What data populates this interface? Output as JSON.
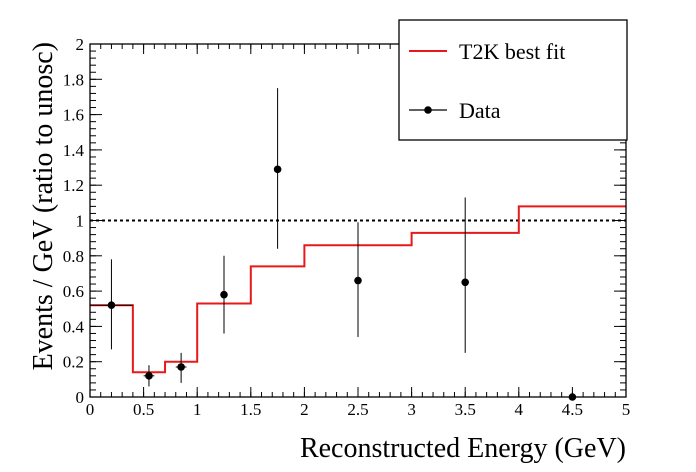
{
  "chart_data": {
    "type": "line",
    "title": "",
    "xlabel": "Reconstructed Energy (GeV)",
    "ylabel": "Events / GeV (ratio to unosc)",
    "xlim": [
      0,
      5
    ],
    "ylim": [
      0,
      2
    ],
    "x_ticks": [
      "0",
      "0.5",
      "1",
      "1.5",
      "2",
      "2.5",
      "3",
      "3.5",
      "4",
      "4.5",
      "5"
    ],
    "y_ticks": [
      "0",
      "0.2",
      "0.4",
      "0.6",
      "0.8",
      "1",
      "1.2",
      "1.4",
      "1.6",
      "1.8",
      "2"
    ],
    "reference_line": {
      "y": 1,
      "style": "dotted"
    },
    "legend": {
      "position": "top-right",
      "entries": [
        "T2K best fit",
        "Data"
      ]
    },
    "series": [
      {
        "name": "T2K best fit",
        "kind": "step",
        "color": "#e8191a",
        "bins": [
          {
            "x0": 0.0,
            "x1": 0.4,
            "y": 0.52
          },
          {
            "x0": 0.4,
            "x1": 0.7,
            "y": 0.14
          },
          {
            "x0": 0.7,
            "x1": 1.0,
            "y": 0.2
          },
          {
            "x0": 1.0,
            "x1": 1.5,
            "y": 0.53
          },
          {
            "x0": 1.5,
            "x1": 2.0,
            "y": 0.74
          },
          {
            "x0": 2.0,
            "x1": 3.0,
            "y": 0.86
          },
          {
            "x0": 3.0,
            "x1": 4.0,
            "y": 0.93
          },
          {
            "x0": 4.0,
            "x1": 5.0,
            "y": 1.08
          }
        ]
      },
      {
        "name": "Data",
        "kind": "points",
        "color": "#000000",
        "points": [
          {
            "x": 0.2,
            "y": 0.52,
            "ylo": 0.27,
            "yhi": 0.78,
            "xlo": 0.0,
            "xhi": 0.4
          },
          {
            "x": 0.55,
            "y": 0.12,
            "ylo": 0.06,
            "yhi": 0.18,
            "xlo": 0.5,
            "xhi": 0.6
          },
          {
            "x": 0.85,
            "y": 0.17,
            "ylo": 0.08,
            "yhi": 0.25,
            "xlo": 0.8,
            "xhi": 0.9
          },
          {
            "x": 1.25,
            "y": 0.58,
            "ylo": 0.36,
            "yhi": 0.8,
            "xlo": 1.22,
            "xhi": 1.28
          },
          {
            "x": 1.75,
            "y": 1.29,
            "ylo": 0.84,
            "yhi": 1.75,
            "xlo": 1.72,
            "xhi": 1.78
          },
          {
            "x": 2.5,
            "y": 0.66,
            "ylo": 0.34,
            "yhi": 0.99,
            "xlo": 2.47,
            "xhi": 2.53
          },
          {
            "x": 3.5,
            "y": 0.65,
            "ylo": 0.25,
            "yhi": 1.13,
            "xlo": 3.47,
            "xhi": 3.53
          },
          {
            "x": 4.5,
            "y": 0.0,
            "ylo": 0.0,
            "yhi": 0.0,
            "xlo": 4.5,
            "xhi": 4.5
          }
        ]
      }
    ]
  }
}
